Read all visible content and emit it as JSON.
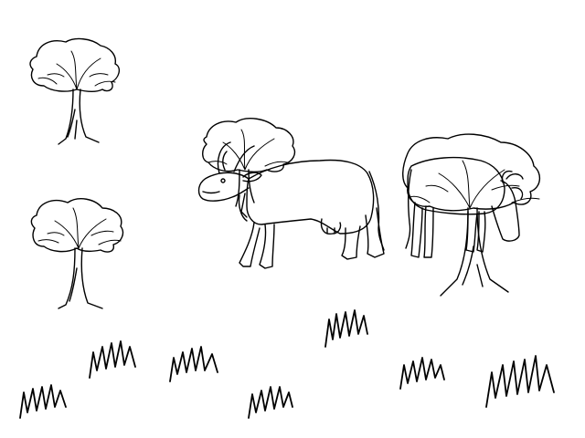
{
  "scene": {
    "background": "#ffffff",
    "stroke_color": "#000000",
    "objects": [
      {
        "kind": "tree",
        "count": 4
      },
      {
        "kind": "cow",
        "count": 2
      },
      {
        "kind": "grass-tuft",
        "count": 8
      }
    ]
  }
}
